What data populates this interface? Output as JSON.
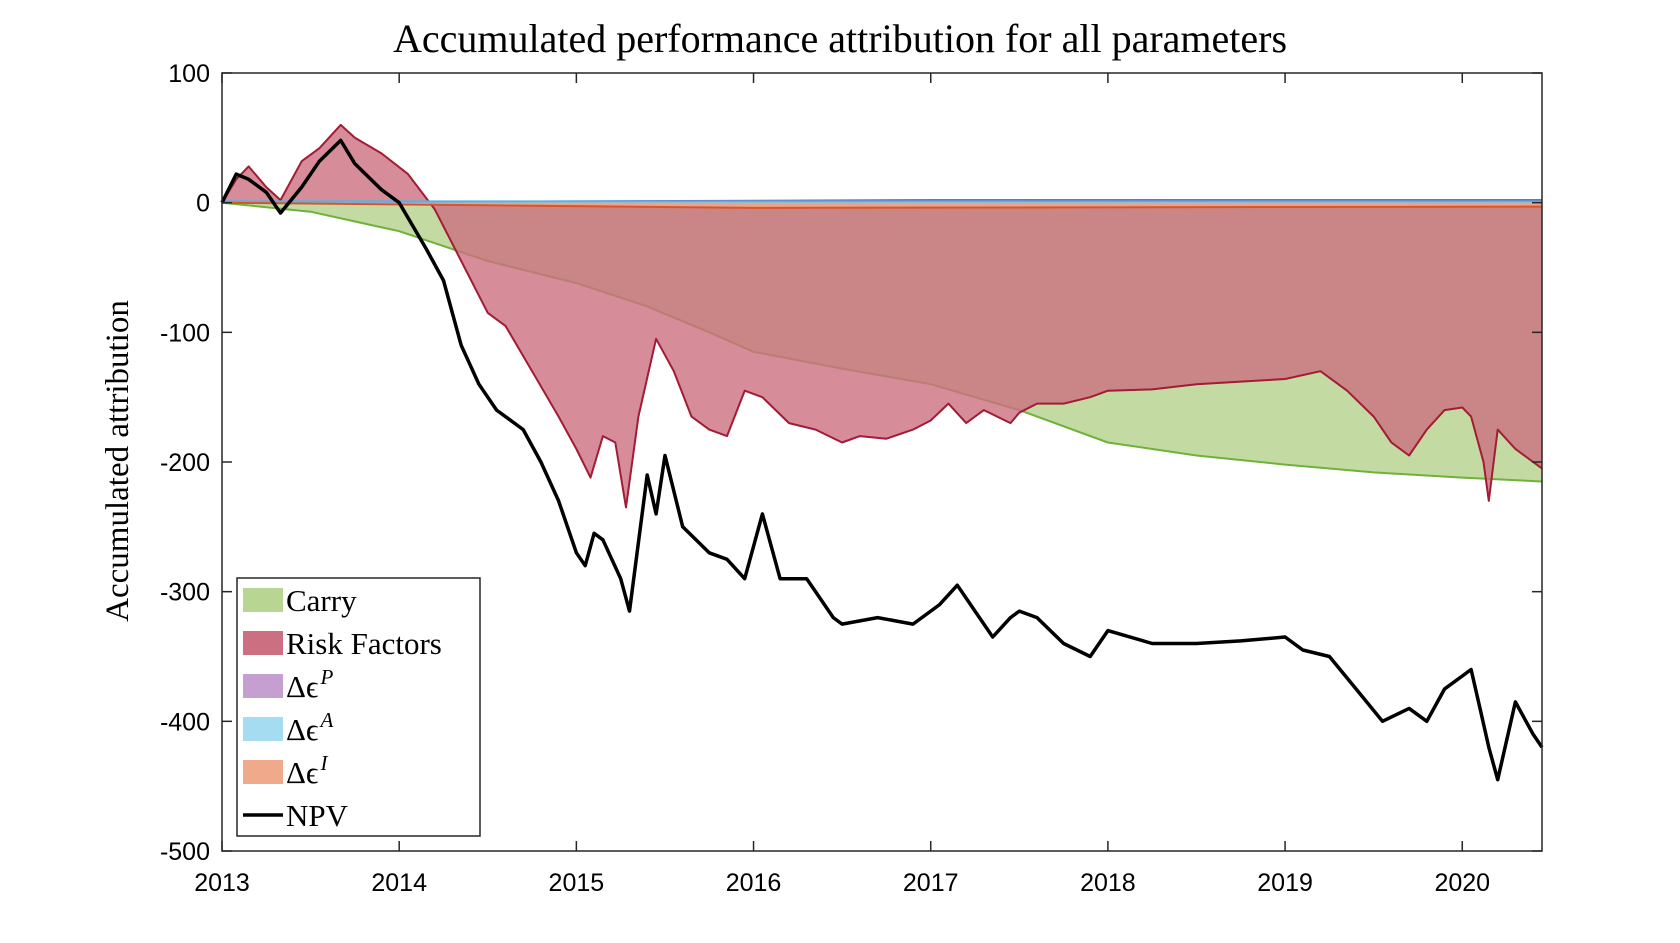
{
  "chart_data": {
    "type": "area",
    "title": "Accumulated performance attribution for all parameters",
    "xlabel": "",
    "ylabel": "Accumulated attribution",
    "xlim": [
      2013,
      2020.45
    ],
    "ylim": [
      -500,
      100
    ],
    "x_ticks": [
      {
        "value": 2013,
        "label": "2013"
      },
      {
        "value": 2014,
        "label": "2014"
      },
      {
        "value": 2015,
        "label": "2015"
      },
      {
        "value": 2016,
        "label": "2016"
      },
      {
        "value": 2017,
        "label": "2017"
      },
      {
        "value": 2018,
        "label": "2018"
      },
      {
        "value": 2019,
        "label": "2019"
      },
      {
        "value": 2020,
        "label": "2020"
      }
    ],
    "y_ticks": [
      {
        "value": 100,
        "label": "100"
      },
      {
        "value": 0,
        "label": "0"
      },
      {
        "value": -100,
        "label": "-100"
      },
      {
        "value": -200,
        "label": "-200"
      },
      {
        "value": -300,
        "label": "-300"
      },
      {
        "value": -400,
        "label": "-400"
      },
      {
        "value": -500,
        "label": "-500"
      }
    ],
    "grid": false,
    "legend_position": "bottom-left",
    "series": [
      {
        "name": "Carry",
        "kind": "area",
        "fill": "#b9d592",
        "stroke": "#6fb23a",
        "x": [
          2013,
          2013.5,
          2014,
          2014.5,
          2015,
          2015.4,
          2015.75,
          2016,
          2016.5,
          2017,
          2017.5,
          2018,
          2018.5,
          2019,
          2019.5,
          2020,
          2020.45
        ],
        "y": [
          0,
          -7,
          -22,
          -45,
          -62,
          -80,
          -100,
          -115,
          -128,
          -140,
          -160,
          -185,
          -195,
          -202,
          -208,
          -212,
          -215
        ]
      },
      {
        "name": "Risk Factors",
        "kind": "area",
        "fill": "#cc6f80",
        "stroke": "#a11c34",
        "x": [
          2013,
          2013.08,
          2013.15,
          2013.25,
          2013.33,
          2013.45,
          2013.55,
          2013.67,
          2013.75,
          2013.9,
          2014.05,
          2014.2,
          2014.35,
          2014.5,
          2014.6,
          2014.75,
          2014.9,
          2015,
          2015.08,
          2015.15,
          2015.22,
          2015.28,
          2015.35,
          2015.45,
          2015.55,
          2015.65,
          2015.75,
          2015.85,
          2015.95,
          2016.05,
          2016.2,
          2016.35,
          2016.5,
          2016.6,
          2016.75,
          2016.9,
          2017,
          2017.1,
          2017.2,
          2017.3,
          2017.45,
          2017.5,
          2017.6,
          2017.75,
          2017.9,
          2018,
          2018.25,
          2018.5,
          2018.75,
          2019,
          2019.2,
          2019.35,
          2019.5,
          2019.6,
          2019.7,
          2019.8,
          2019.9,
          2020,
          2020.05,
          2020.12,
          2020.15,
          2020.2,
          2020.3,
          2020.4,
          2020.45
        ],
        "y": [
          0,
          18,
          28,
          12,
          2,
          32,
          42,
          60,
          50,
          38,
          22,
          -5,
          -45,
          -85,
          -95,
          -130,
          -165,
          -190,
          -212,
          -180,
          -185,
          -235,
          -165,
          -105,
          -130,
          -165,
          -175,
          -180,
          -145,
          -150,
          -170,
          -175,
          -185,
          -180,
          -182,
          -175,
          -168,
          -155,
          -170,
          -160,
          -170,
          -162,
          -155,
          -155,
          -150,
          -145,
          -144,
          -140,
          -138,
          -136,
          -130,
          -145,
          -165,
          -185,
          -195,
          -175,
          -160,
          -158,
          -165,
          -200,
          -230,
          -175,
          -190,
          -200,
          -205
        ]
      },
      {
        "name": "Δϵ",
        "sup": "P",
        "kind": "area",
        "fill": "#c59fcf",
        "stroke": "#7b4fb8",
        "x": [
          2013,
          2017,
          2020.45
        ],
        "y": [
          0,
          2,
          2
        ]
      },
      {
        "name": "Δϵ",
        "sup": "A",
        "kind": "area",
        "fill": "#a6dcf2",
        "stroke": "#4fb6e3",
        "x": [
          2013,
          2020.45
        ],
        "y": [
          1,
          1
        ]
      },
      {
        "name": "Δϵ",
        "sup": "I",
        "kind": "area",
        "fill": "#eeaa8a",
        "stroke": "#d9542a",
        "x": [
          2013,
          2016,
          2020.45
        ],
        "y": [
          0,
          -4,
          -3
        ]
      },
      {
        "name": "NPV",
        "kind": "line",
        "stroke": "#000000",
        "x": [
          2013,
          2013.08,
          2013.15,
          2013.25,
          2013.33,
          2013.45,
          2013.55,
          2013.67,
          2013.75,
          2013.9,
          2014,
          2014.15,
          2014.25,
          2014.35,
          2014.45,
          2014.55,
          2014.7,
          2014.8,
          2014.9,
          2015,
          2015.05,
          2015.1,
          2015.15,
          2015.25,
          2015.3,
          2015.4,
          2015.45,
          2015.5,
          2015.6,
          2015.75,
          2015.85,
          2015.95,
          2016.05,
          2016.15,
          2016.3,
          2016.45,
          2016.5,
          2016.7,
          2016.9,
          2017.05,
          2017.15,
          2017.25,
          2017.35,
          2017.45,
          2017.5,
          2017.6,
          2017.75,
          2017.9,
          2018,
          2018.25,
          2018.5,
          2018.75,
          2019,
          2019.1,
          2019.25,
          2019.4,
          2019.55,
          2019.7,
          2019.8,
          2019.9,
          2020,
          2020.05,
          2020.1,
          2020.15,
          2020.2,
          2020.3,
          2020.4,
          2020.45
        ],
        "y": [
          0,
          22,
          18,
          8,
          -8,
          12,
          32,
          48,
          30,
          10,
          0,
          -35,
          -60,
          -110,
          -140,
          -160,
          -175,
          -200,
          -230,
          -270,
          -280,
          -255,
          -260,
          -290,
          -315,
          -210,
          -240,
          -195,
          -250,
          -270,
          -275,
          -290,
          -240,
          -290,
          -290,
          -320,
          -325,
          -320,
          -325,
          -310,
          -295,
          -315,
          -335,
          -320,
          -315,
          -320,
          -340,
          -350,
          -330,
          -340,
          -340,
          -338,
          -335,
          -345,
          -350,
          -375,
          -400,
          -390,
          -400,
          -375,
          -365,
          -360,
          -390,
          -420,
          -445,
          -385,
          -410,
          -420
        ]
      }
    ]
  }
}
